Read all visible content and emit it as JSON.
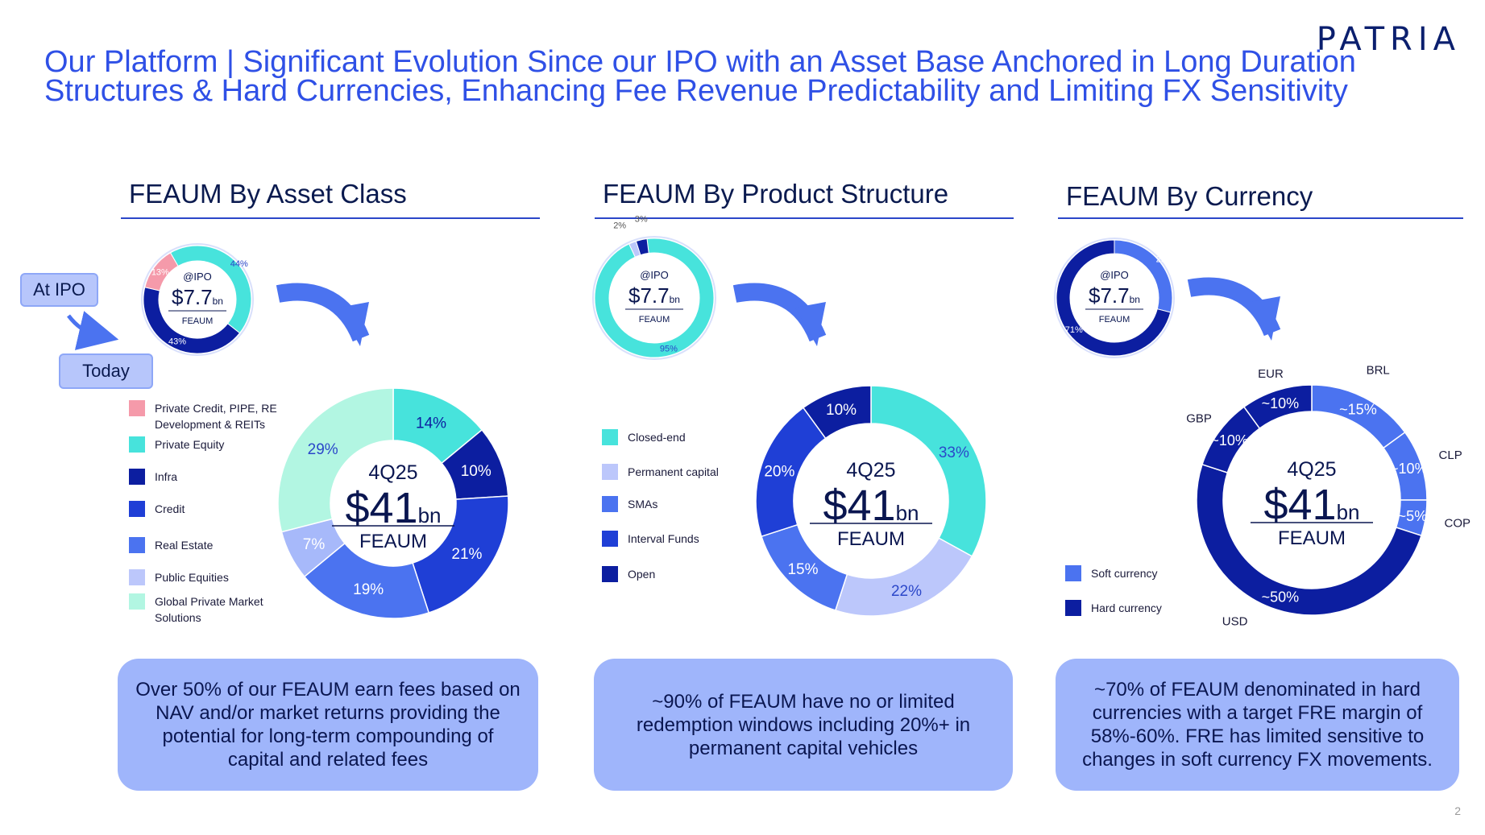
{
  "logo": "PATRIA",
  "title": {
    "line1": "Our Platform | Significant Evolution Since our IPO with an Asset Base Anchored in Long Duration",
    "line2": "Structures & Hard Currencies, Enhancing Fee Revenue Predictability and Limiting FX Sensitivity"
  },
  "labels": {
    "at_ipo": "At IPO",
    "today": "Today"
  },
  "page_number": "2",
  "panels": [
    {
      "title": "FEAUM By Asset Class",
      "legend": [
        {
          "label": "Private Credit, PIPE, RE Development & REITs",
          "color": "#f59aaa"
        },
        {
          "label": "Private Equity",
          "color": "#47e3dc"
        },
        {
          "label": "Infra",
          "color": "#0c1ea0"
        },
        {
          "label": "Credit",
          "color": "#1f3fd6"
        },
        {
          "label": "Real Estate",
          "color": "#4b73f0"
        },
        {
          "label": "Public Equities",
          "color": "#bcc7fb"
        },
        {
          "label": "Global Private Market Solutions",
          "color": "#b2f6e2"
        }
      ],
      "callout": "Over 50% of our FEAUM earn fees based on NAV and/or market returns providing the potential for long-term compounding of capital and related fees"
    },
    {
      "title": "FEAUM By Product Structure",
      "legend": [
        {
          "label": "Closed-end",
          "color": "#47e3dc"
        },
        {
          "label": "Permanent capital",
          "color": "#bcc7fb"
        },
        {
          "label": "SMAs",
          "color": "#4b73f0"
        },
        {
          "label": "Interval Funds",
          "color": "#1f3fd6"
        },
        {
          "label": "Open",
          "color": "#0c1ea0"
        }
      ],
      "callout": "~90% of FEAUM have no or limited redemption windows including 20%+ in permanent capital vehicles"
    },
    {
      "title": "FEAUM By Currency",
      "legend": [
        {
          "label": "Soft currency",
          "color": "#4b73f0"
        },
        {
          "label": "Hard currency",
          "color": "#0c1ea0"
        }
      ],
      "callout": "~70% of FEAUM denominated in hard currencies with a target FRE margin of 58%-60%. FRE has limited sensitive to changes in soft currency FX movements."
    }
  ],
  "chart_data": [
    {
      "type": "pie",
      "variant": "donut",
      "panel": "FEAUM By Asset Class",
      "period": "@IPO",
      "center": {
        "period": "@IPO",
        "value": "$7.7",
        "unit": "bn",
        "label": "FEAUM"
      },
      "slices": [
        {
          "label": "Private Equity",
          "value": 44,
          "text": "44%",
          "color": "#47e3dc"
        },
        {
          "label": "Infra",
          "value": 43,
          "text": "43%",
          "color": "#0c1ea0"
        },
        {
          "label": "Private Credit, PIPE, RE Development & REITs",
          "value": 13,
          "text": "13%",
          "color": "#f59aaa"
        }
      ]
    },
    {
      "type": "pie",
      "variant": "donut",
      "panel": "FEAUM By Asset Class",
      "period": "4Q25",
      "center": {
        "period": "4Q25",
        "value": "$41",
        "unit": "bn",
        "label": "FEAUM"
      },
      "slices": [
        {
          "label": "Private Equity",
          "value": 14,
          "text": "14%",
          "color": "#47e3dc"
        },
        {
          "label": "Infra",
          "value": 10,
          "text": "10%",
          "color": "#0c1ea0"
        },
        {
          "label": "Credit",
          "value": 21,
          "text": "21%",
          "color": "#1f3fd6"
        },
        {
          "label": "Real Estate",
          "value": 19,
          "text": "19%",
          "color": "#4b73f0"
        },
        {
          "label": "Public Equities",
          "value": 7,
          "text": "7%",
          "color": "#a7b9fa"
        },
        {
          "label": "Global Private Market Solutions",
          "value": 29,
          "text": "29%",
          "color": "#b2f6e2"
        }
      ]
    },
    {
      "type": "pie",
      "variant": "donut",
      "panel": "FEAUM By Product Structure",
      "period": "@IPO",
      "center": {
        "period": "@IPO",
        "value": "$7.7",
        "unit": "bn",
        "label": "FEAUM"
      },
      "slices": [
        {
          "label": "Closed-end",
          "value": 95,
          "text": "95%",
          "color": "#47e3dc"
        },
        {
          "label": "Permanent capital",
          "value": 2,
          "text": "2%",
          "color": "#bcc7fb"
        },
        {
          "label": "Open",
          "value": 3,
          "text": "3%",
          "color": "#0c1ea0"
        }
      ]
    },
    {
      "type": "pie",
      "variant": "donut",
      "panel": "FEAUM By Product Structure",
      "period": "4Q25",
      "center": {
        "period": "4Q25",
        "value": "$41",
        "unit": "bn",
        "label": "FEAUM"
      },
      "slices": [
        {
          "label": "Closed-end",
          "value": 33,
          "text": "33%",
          "color": "#47e3dc"
        },
        {
          "label": "Permanent capital",
          "value": 22,
          "text": "22%",
          "color": "#bcc7fb"
        },
        {
          "label": "SMAs",
          "value": 15,
          "text": "15%",
          "color": "#4b73f0"
        },
        {
          "label": "Interval Funds",
          "value": 20,
          "text": "20%",
          "color": "#1f3fd6"
        },
        {
          "label": "Open",
          "value": 10,
          "text": "10%",
          "color": "#0c1ea0"
        }
      ]
    },
    {
      "type": "pie",
      "variant": "donut",
      "panel": "FEAUM By Currency",
      "period": "@IPO",
      "center": {
        "period": "@IPO",
        "value": "$7.7",
        "unit": "bn",
        "label": "FEAUM"
      },
      "slices": [
        {
          "label": "Soft currency",
          "value": 29,
          "text": "29%",
          "color": "#4b73f0"
        },
        {
          "label": "Hard currency",
          "value": 71,
          "text": "71%",
          "color": "#0c1ea0"
        }
      ]
    },
    {
      "type": "pie",
      "variant": "donut",
      "panel": "FEAUM By Currency",
      "period": "4Q25",
      "center": {
        "period": "4Q25",
        "value": "$41",
        "unit": "bn",
        "label": "FEAUM"
      },
      "slices": [
        {
          "label": "BRL",
          "value": 15,
          "text": "~15%",
          "color": "#4b73f0"
        },
        {
          "label": "CLP",
          "value": 10,
          "text": "~10%",
          "color": "#4b73f0"
        },
        {
          "label": "COP",
          "value": 5,
          "text": "~5%",
          "color": "#4b73f0"
        },
        {
          "label": "USD",
          "value": 50,
          "text": "~50%",
          "color": "#0c1ea0"
        },
        {
          "label": "GBP",
          "value": 10,
          "text": "~10%",
          "color": "#0c1ea0"
        },
        {
          "label": "EUR",
          "value": 10,
          "text": "~10%",
          "color": "#0c1ea0"
        }
      ]
    }
  ]
}
